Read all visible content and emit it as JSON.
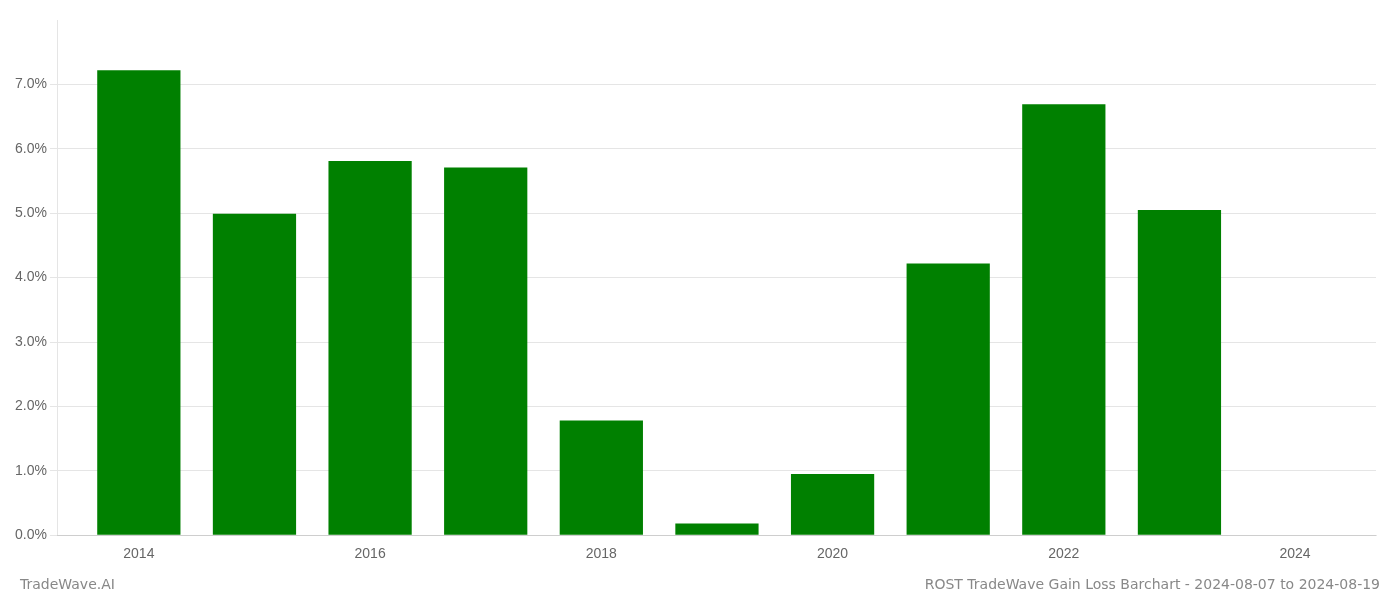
{
  "chart_data": {
    "type": "bar",
    "x": [
      2014,
      2015,
      2016,
      2017,
      2018,
      2019,
      2020,
      2021,
      2022,
      2023
    ],
    "values": [
      0.0722,
      0.0499,
      0.0581,
      0.0571,
      0.0178,
      0.0018,
      0.0095,
      0.0422,
      0.0669,
      0.0505
    ],
    "color": "#008000",
    "xlim": [
      2013.3,
      2024.7
    ],
    "xticks": [
      2014,
      2016,
      2018,
      2020,
      2022,
      2024
    ],
    "ylim": [
      0,
      0.08
    ],
    "yticks": [
      {
        "value": 0.0,
        "label": "0.0%"
      },
      {
        "value": 0.01,
        "label": "1.0%"
      },
      {
        "value": 0.02,
        "label": "2.0%"
      },
      {
        "value": 0.03,
        "label": "3.0%"
      },
      {
        "value": 0.04,
        "label": "4.0%"
      },
      {
        "value": 0.05,
        "label": "5.0%"
      },
      {
        "value": 0.06,
        "label": "6.0%"
      },
      {
        "value": 0.07,
        "label": "7.0%"
      }
    ],
    "grid": "y",
    "annotations": [
      "TradeWave.AI",
      "ROST TradeWave Gain Loss Barchart - 2024-08-07 to 2024-08-19"
    ]
  }
}
